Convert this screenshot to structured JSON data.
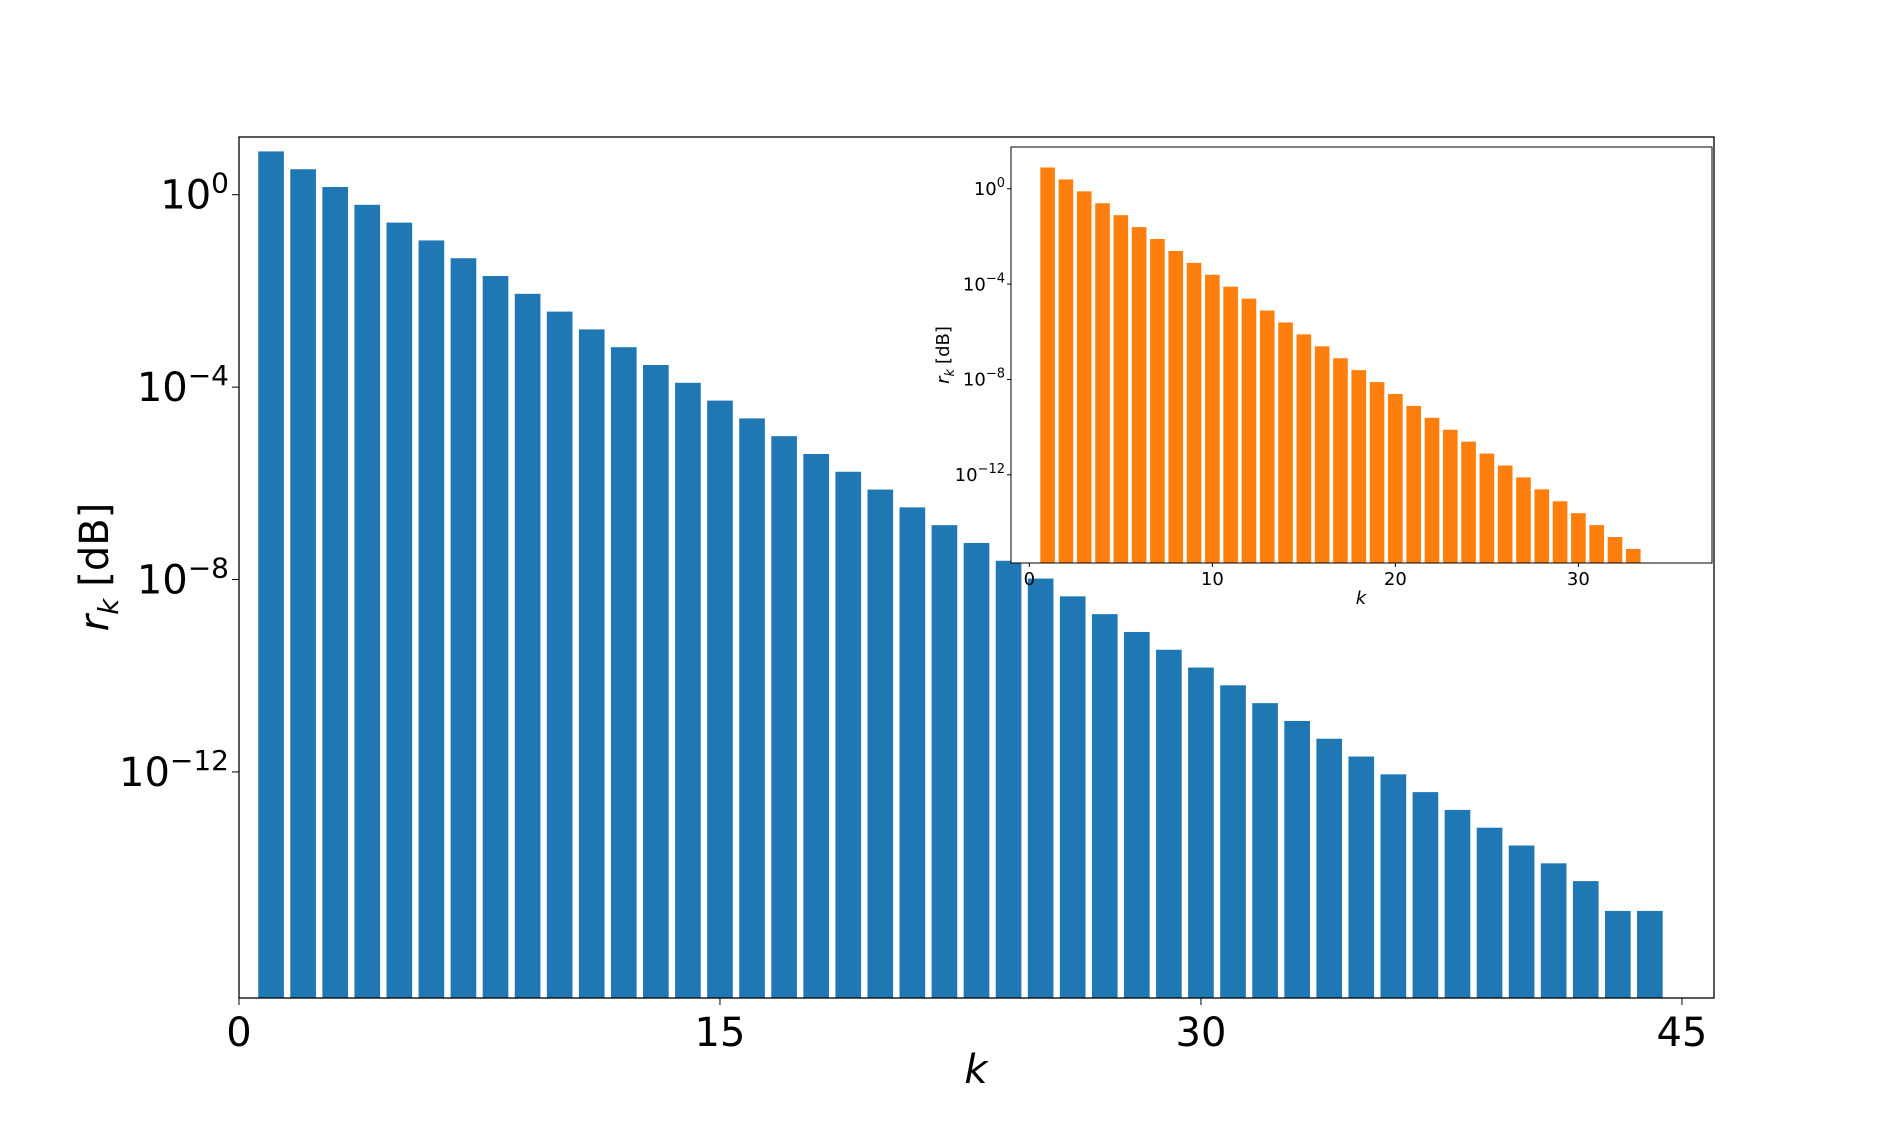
{
  "chart_data": [
    {
      "type": "bar",
      "color": "#1f77b4",
      "yscale": "log",
      "xlabel": "k",
      "ylabel": "r",
      "ylabel_subscript": "k",
      "ylabel_unit": "[dB]",
      "xlim": [
        0,
        46
      ],
      "ylim_exponent": [
        -16.7,
        1.2
      ],
      "xticks": [
        0,
        15,
        30,
        45
      ],
      "xtick_labels": [
        "0",
        "15",
        "30",
        "45"
      ],
      "ytick_exponents": [
        0,
        -4,
        -8,
        -12
      ],
      "ytick_base": "10",
      "ytick_labels": [
        "0",
        "−4",
        "−8",
        "−12"
      ],
      "x": [
        1,
        2,
        3,
        4,
        5,
        6,
        7,
        8,
        9,
        10,
        11,
        12,
        13,
        14,
        15,
        16,
        17,
        18,
        19,
        20,
        21,
        22,
        23,
        24,
        25,
        26,
        27,
        28,
        29,
        30,
        31,
        32,
        33,
        34,
        35,
        36,
        37,
        38,
        39,
        40,
        41,
        42,
        43,
        44
      ],
      "log10_values": [
        0.9,
        0.53,
        0.16,
        -0.21,
        -0.58,
        -0.95,
        -1.32,
        -1.69,
        -2.06,
        -2.43,
        -2.8,
        -3.17,
        -3.54,
        -3.91,
        -4.28,
        -4.65,
        -5.02,
        -5.39,
        -5.76,
        -6.13,
        -6.5,
        -6.87,
        -7.24,
        -7.61,
        -7.98,
        -8.35,
        -8.72,
        -9.09,
        -9.46,
        -9.83,
        -10.2,
        -10.57,
        -10.94,
        -11.31,
        -11.68,
        -12.05,
        -12.42,
        -12.79,
        -13.16,
        -13.53,
        -13.9,
        -14.27,
        -14.89,
        -14.89
      ]
    },
    {
      "type": "bar",
      "color": "#ff7f0e",
      "yscale": "log",
      "xlabel": "k",
      "ylabel": "r",
      "ylabel_subscript": "k",
      "ylabel_unit": "[dB]",
      "xlim": [
        -1,
        37.3
      ],
      "ylim_exponent": [
        -15.7,
        1.75
      ],
      "xticks": [
        0,
        10,
        20,
        30
      ],
      "xtick_labels": [
        "0",
        "10",
        "20",
        "30"
      ],
      "ytick_exponents": [
        0,
        -4,
        -8,
        -12
      ],
      "ytick_base": "10",
      "ytick_labels": [
        "0",
        "−4",
        "−8",
        "−12"
      ],
      "x": [
        1,
        2,
        3,
        4,
        5,
        6,
        7,
        8,
        9,
        10,
        11,
        12,
        13,
        14,
        15,
        16,
        17,
        18,
        19,
        20,
        21,
        22,
        23,
        24,
        25,
        26,
        27,
        28,
        29,
        30,
        31,
        32,
        33
      ],
      "log10_values": [
        0.89,
        0.39,
        -0.11,
        -0.61,
        -1.11,
        -1.61,
        -2.11,
        -2.61,
        -3.11,
        -3.61,
        -4.11,
        -4.61,
        -5.11,
        -5.61,
        -6.11,
        -6.61,
        -7.11,
        -7.61,
        -8.11,
        -8.61,
        -9.11,
        -9.61,
        -10.11,
        -10.61,
        -11.11,
        -11.61,
        -12.11,
        -12.61,
        -13.11,
        -13.61,
        -14.11,
        -14.61,
        -15.11
      ]
    }
  ]
}
